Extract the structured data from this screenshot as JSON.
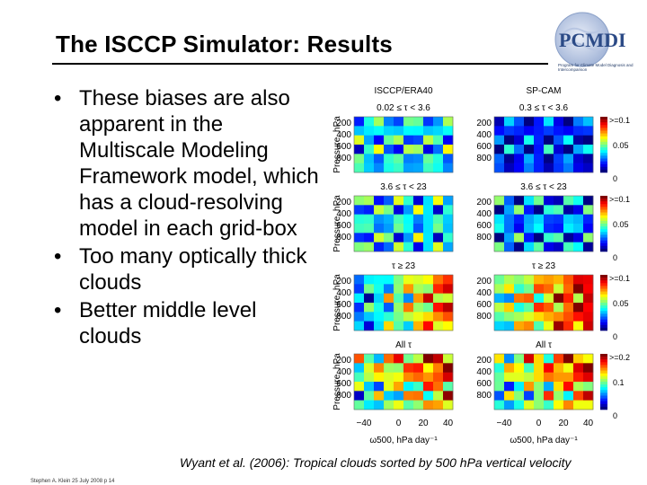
{
  "slide": {
    "title": "The ISCCP Simulator: Results",
    "logo_text": "PCMDI",
    "logo_tagline": "Program for Climate Model Diagnosis and Intercomparison",
    "bullets": [
      "These biases are also apparent in the Multiscale Modeling Framework model, which has a cloud-resolving model in each grid-box",
      "Too many optically thick clouds",
      "Better middle level clouds"
    ],
    "caption": "Wyant et al. (2006): Tropical clouds sorted by 500 hPa vertical velocity",
    "footer": "Stephen A. Klein 25 July 2008 p 14"
  },
  "figure": {
    "column_titles": [
      "ISCCP/ERA40",
      "SP-CAM"
    ],
    "row_labels": [
      "0.02 ≤ τ < 3.6",
      "3.6 ≤ τ < 23",
      "τ ≥ 23",
      "All τ"
    ],
    "row_labels_right": [
      "0.3 ≤ τ < 3.6",
      "3.6 ≤ τ < 23",
      "τ ≥ 23",
      "All τ"
    ],
    "y_axis_label": "Pressure, hPa",
    "y_ticks": [
      "200",
      "400",
      "600",
      "800"
    ],
    "x_ticks": [
      "−40",
      "0",
      "20",
      "40"
    ],
    "x_axis_label": "ω500, hPa day⁻¹",
    "colorbars": [
      {
        "max": ">=0.1",
        "mid": "0.05",
        "min": "0"
      },
      {
        "max": ">=0.1",
        "mid": "0.05",
        "min": "0"
      },
      {
        "max": ">=0.1",
        "mid": "0.05",
        "min": "0"
      },
      {
        "max": ">=0.2",
        "mid": "0.1",
        "min": "0"
      }
    ]
  }
}
